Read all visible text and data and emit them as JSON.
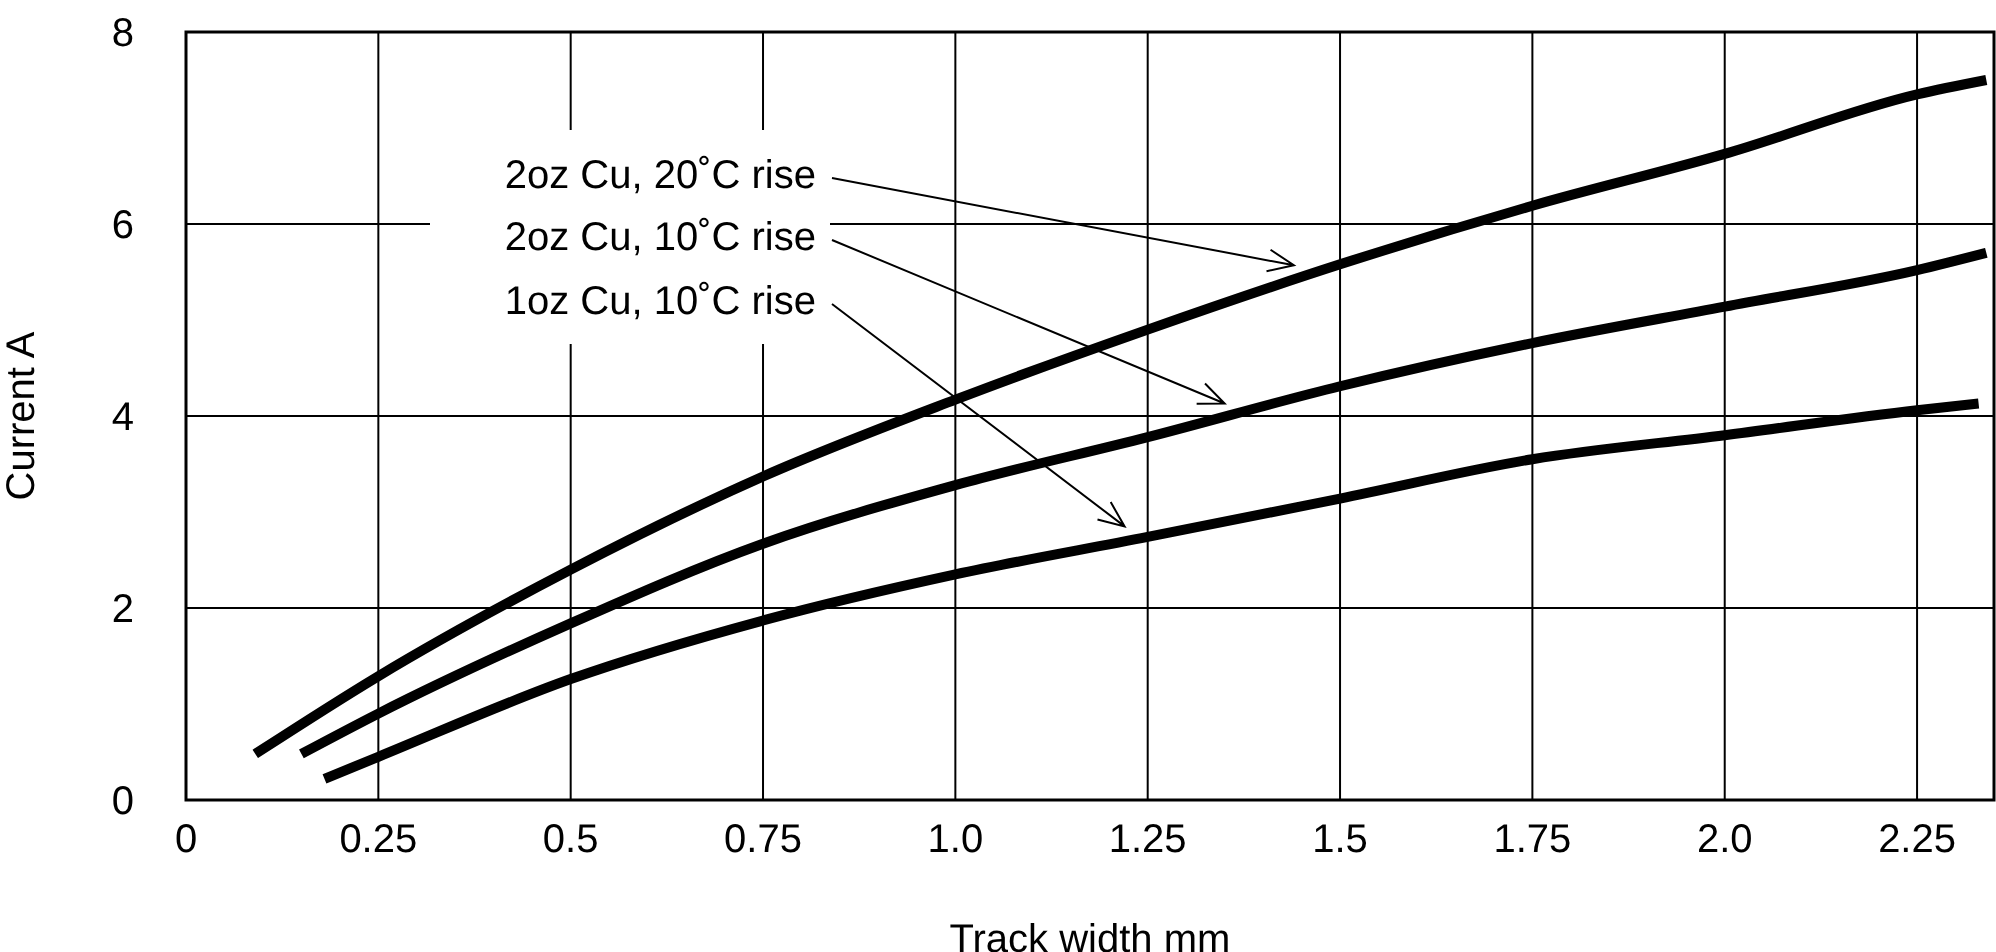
{
  "chart_data": {
    "type": "line",
    "xlabel": "Track width mm",
    "ylabel": "Current  A",
    "xlim": [
      0,
      2.35
    ],
    "xticks": [
      0,
      0.25,
      0.5,
      0.75,
      {
        "value": 1,
        "label": "1.0"
      },
      1.25,
      1.5,
      1.75,
      {
        "value": 2,
        "label": "2.0"
      },
      2.25
    ],
    "ylim": [
      0,
      8
    ],
    "yticks": [
      0,
      2,
      4,
      6,
      8
    ],
    "grid": true,
    "series": [
      {
        "color": "#000000",
        "x": [
          0.09,
          0.25,
          0.5,
          0.75,
          1.0,
          1.25,
          1.5,
          1.75,
          2.0,
          2.25,
          2.34
        ],
        "values": [
          0.48,
          1.29,
          2.4,
          3.37,
          4.17,
          4.9,
          5.58,
          6.19,
          6.73,
          7.35,
          7.5
        ]
      },
      {
        "color": "#000000",
        "x": [
          0.15,
          0.25,
          0.5,
          0.75,
          1.0,
          1.25,
          1.5,
          1.75,
          2.0,
          2.25,
          2.34
        ],
        "values": [
          0.48,
          0.9,
          1.84,
          2.67,
          3.28,
          3.78,
          4.31,
          4.76,
          5.14,
          5.52,
          5.7
        ]
      },
      {
        "color": "#000000",
        "x": [
          0.18,
          0.25,
          0.5,
          0.75,
          1.0,
          1.25,
          1.5,
          1.75,
          2.0,
          2.25,
          2.33
        ],
        "values": [
          0.22,
          0.45,
          1.26,
          1.87,
          2.35,
          2.74,
          3.14,
          3.55,
          3.8,
          4.06,
          4.13
        ]
      }
    ],
    "annotations": [
      {
        "text": "2oz Cu, 20˚C rise",
        "x": 1.44,
        "y": 5.57
      },
      {
        "text": "2oz Cu, 10˚C rise",
        "x": 1.35,
        "y": 4.13
      },
      {
        "text": "1oz Cu, 10˚C rise",
        "x": 1.22,
        "y": 2.85
      }
    ]
  }
}
